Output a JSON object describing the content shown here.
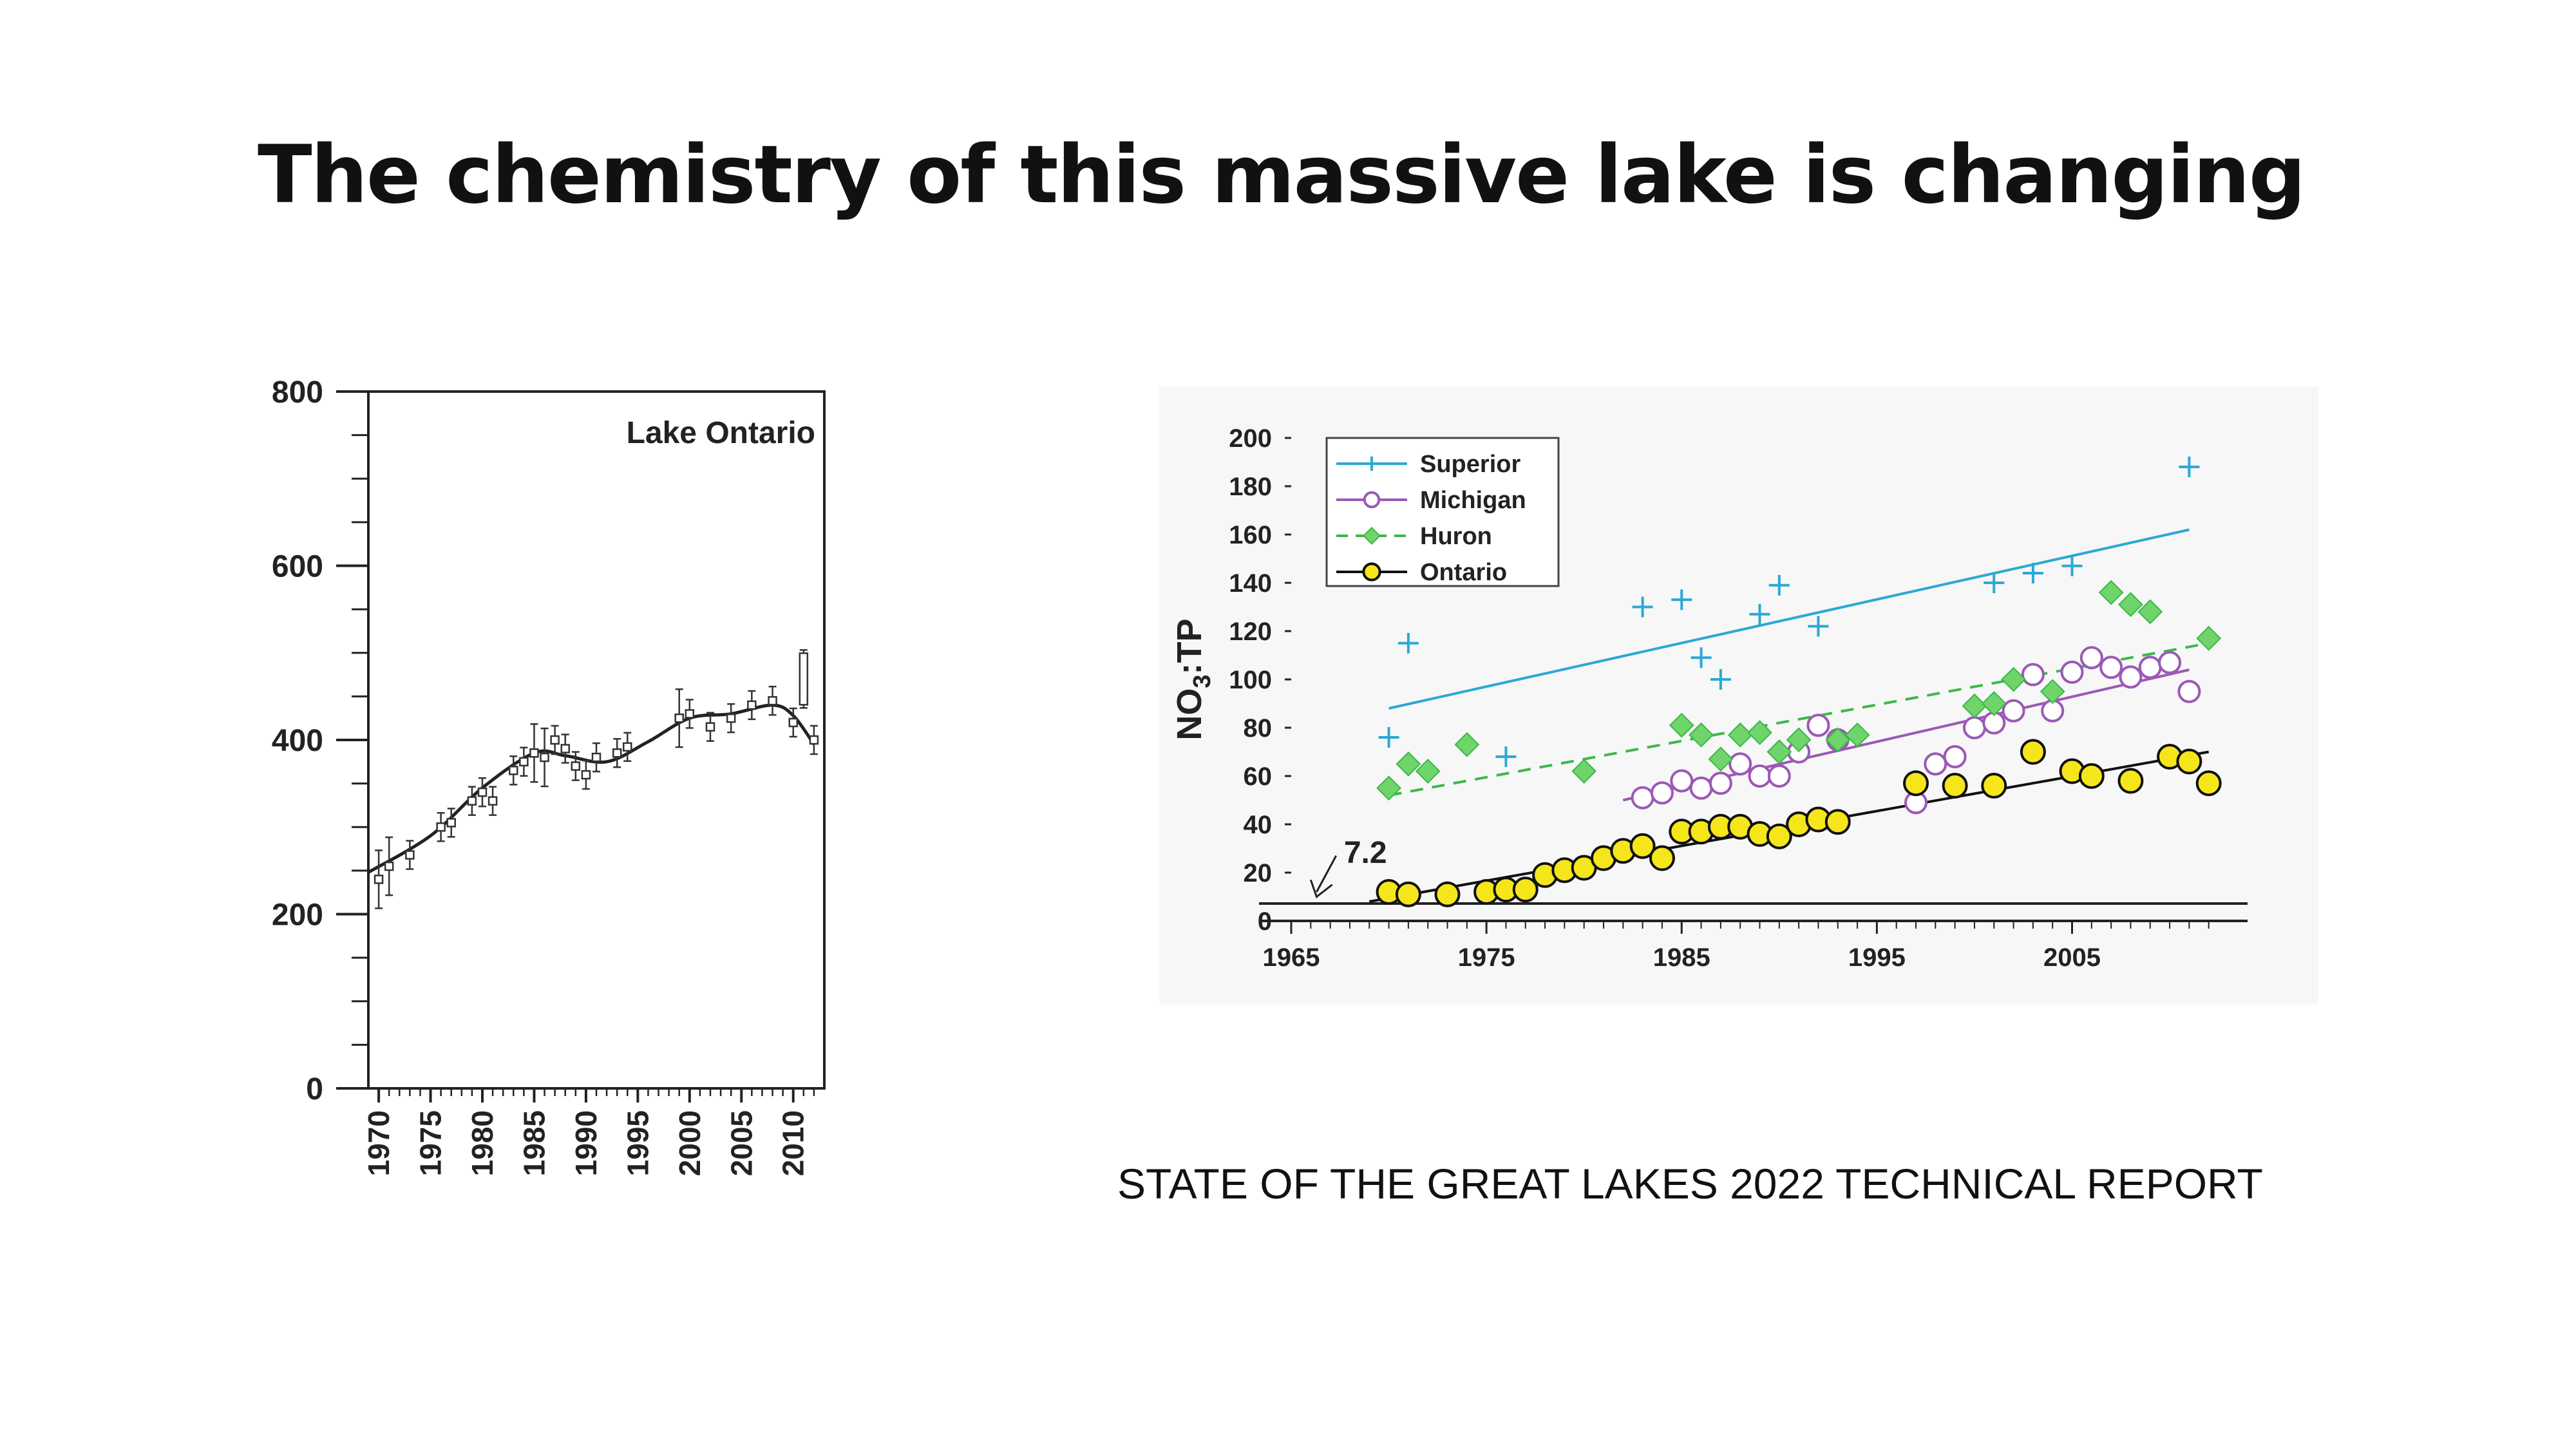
{
  "slide": {
    "title": "The chemistry of this massive lake is changing",
    "source": "STATE OF THE GREAT LAKES 2022 TECHNICAL REPORT"
  },
  "colors": {
    "superior": "#2ba8d6",
    "michigan": "#9b59b6",
    "huron": "#3cb84a",
    "huron_fill": "#6fd46a",
    "ontario": "#111111",
    "ontario_fill": "#f5e61b"
  },
  "chart_data": [
    {
      "type": "line",
      "title": "Lake Ontario",
      "xlabel": "",
      "ylabel": "",
      "xlim": [
        1969,
        2013
      ],
      "ylim": [
        0,
        800
      ],
      "yticks": [
        0,
        200,
        400,
        600,
        800
      ],
      "xticks": [
        1970,
        1975,
        1980,
        1985,
        1990,
        1995,
        2000,
        2005,
        2010
      ],
      "series": [
        {
          "name": "observed",
          "x": [
            1970,
            1971,
            1973,
            1976,
            1977,
            1979,
            1980,
            1981,
            1983,
            1984,
            1985,
            1986,
            1987,
            1988,
            1989,
            1990,
            1991,
            1993,
            1994,
            1999,
            2000,
            2002,
            2004,
            2006,
            2008,
            2010,
            2011,
            2012
          ],
          "y": [
            240,
            255,
            268,
            300,
            305,
            330,
            340,
            330,
            365,
            375,
            385,
            380,
            400,
            390,
            370,
            360,
            380,
            385,
            392,
            425,
            430,
            415,
            425,
            440,
            445,
            420,
            470,
            400
          ]
        },
        {
          "name": "trend",
          "x": [
            1969,
            1975,
            1980,
            1985,
            1988,
            1992,
            1996,
            2000,
            2004,
            2008,
            2010,
            2012
          ],
          "y": [
            248,
            290,
            345,
            385,
            382,
            375,
            398,
            425,
            430,
            440,
            428,
            395
          ]
        }
      ]
    },
    {
      "type": "scatter",
      "xlabel": "",
      "ylabel": "NO3:TP",
      "xlim": [
        1965,
        2013
      ],
      "ylim": [
        0,
        200
      ],
      "yticks": [
        0,
        20,
        40,
        60,
        80,
        100,
        120,
        140,
        160,
        180,
        200
      ],
      "xticks": [
        1965,
        1975,
        1985,
        1995,
        2005
      ],
      "annotation": "7.2",
      "baseline": 7.2,
      "legend": [
        "Superior",
        "Michigan",
        "Huron",
        "Ontario"
      ],
      "legend_position": "top-left",
      "series": [
        {
          "name": "Superior",
          "x": [
            1970,
            1971,
            1976,
            1983,
            1985,
            1986,
            1987,
            1989,
            1990,
            1992,
            2001,
            2003,
            2005,
            2008,
            2011
          ],
          "y": [
            76,
            115,
            68,
            130,
            133,
            109,
            100,
            127,
            139,
            122,
            140,
            144,
            147,
            131,
            188
          ],
          "trend": [
            [
              1970,
              88
            ],
            [
              2011,
              162
            ]
          ]
        },
        {
          "name": "Michigan",
          "x": [
            1983,
            1984,
            1985,
            1986,
            1987,
            1988,
            1989,
            1990,
            1991,
            1992,
            1993,
            1997,
            1998,
            1999,
            2000,
            2001,
            2002,
            2003,
            2004,
            2005,
            2006,
            2007,
            2008,
            2009,
            2010,
            2011
          ],
          "y": [
            51,
            53,
            58,
            55,
            57,
            65,
            60,
            60,
            70,
            81,
            75,
            49,
            65,
            68,
            80,
            82,
            87,
            102,
            87,
            103,
            109,
            105,
            101,
            105,
            107,
            95
          ],
          "trend": [
            [
              1982,
              50
            ],
            [
              2011,
              104
            ]
          ]
        },
        {
          "name": "Huron",
          "x": [
            1970,
            1971,
            1972,
            1974,
            1980,
            1985,
            1986,
            1987,
            1988,
            1989,
            1990,
            1991,
            1993,
            1994,
            2000,
            2001,
            2002,
            2004,
            2007,
            2008,
            2009,
            2012
          ],
          "y": [
            55,
            65,
            62,
            73,
            62,
            81,
            77,
            67,
            77,
            78,
            70,
            75,
            75,
            77,
            89,
            90,
            100,
            95,
            136,
            131,
            128,
            117
          ],
          "trend": [
            [
              1970,
              52
            ],
            [
              2012,
              115
            ]
          ]
        },
        {
          "name": "Ontario",
          "x": [
            1970,
            1971,
            1973,
            1975,
            1976,
            1977,
            1978,
            1979,
            1980,
            1981,
            1982,
            1983,
            1984,
            1985,
            1986,
            1987,
            1988,
            1989,
            1990,
            1991,
            1992,
            1993,
            1997,
            1999,
            2001,
            2003,
            2005,
            2006,
            2008,
            2010,
            2011,
            2012
          ],
          "y": [
            12,
            11,
            11,
            12,
            13,
            13,
            19,
            21,
            22,
            26,
            29,
            31,
            26,
            37,
            37,
            39,
            39,
            36,
            35,
            40,
            42,
            41,
            57,
            56,
            56,
            70,
            62,
            60,
            58,
            68,
            66,
            57
          ],
          "trend": [
            [
              1969,
              8
            ],
            [
              2012,
              70
            ]
          ]
        }
      ]
    }
  ]
}
